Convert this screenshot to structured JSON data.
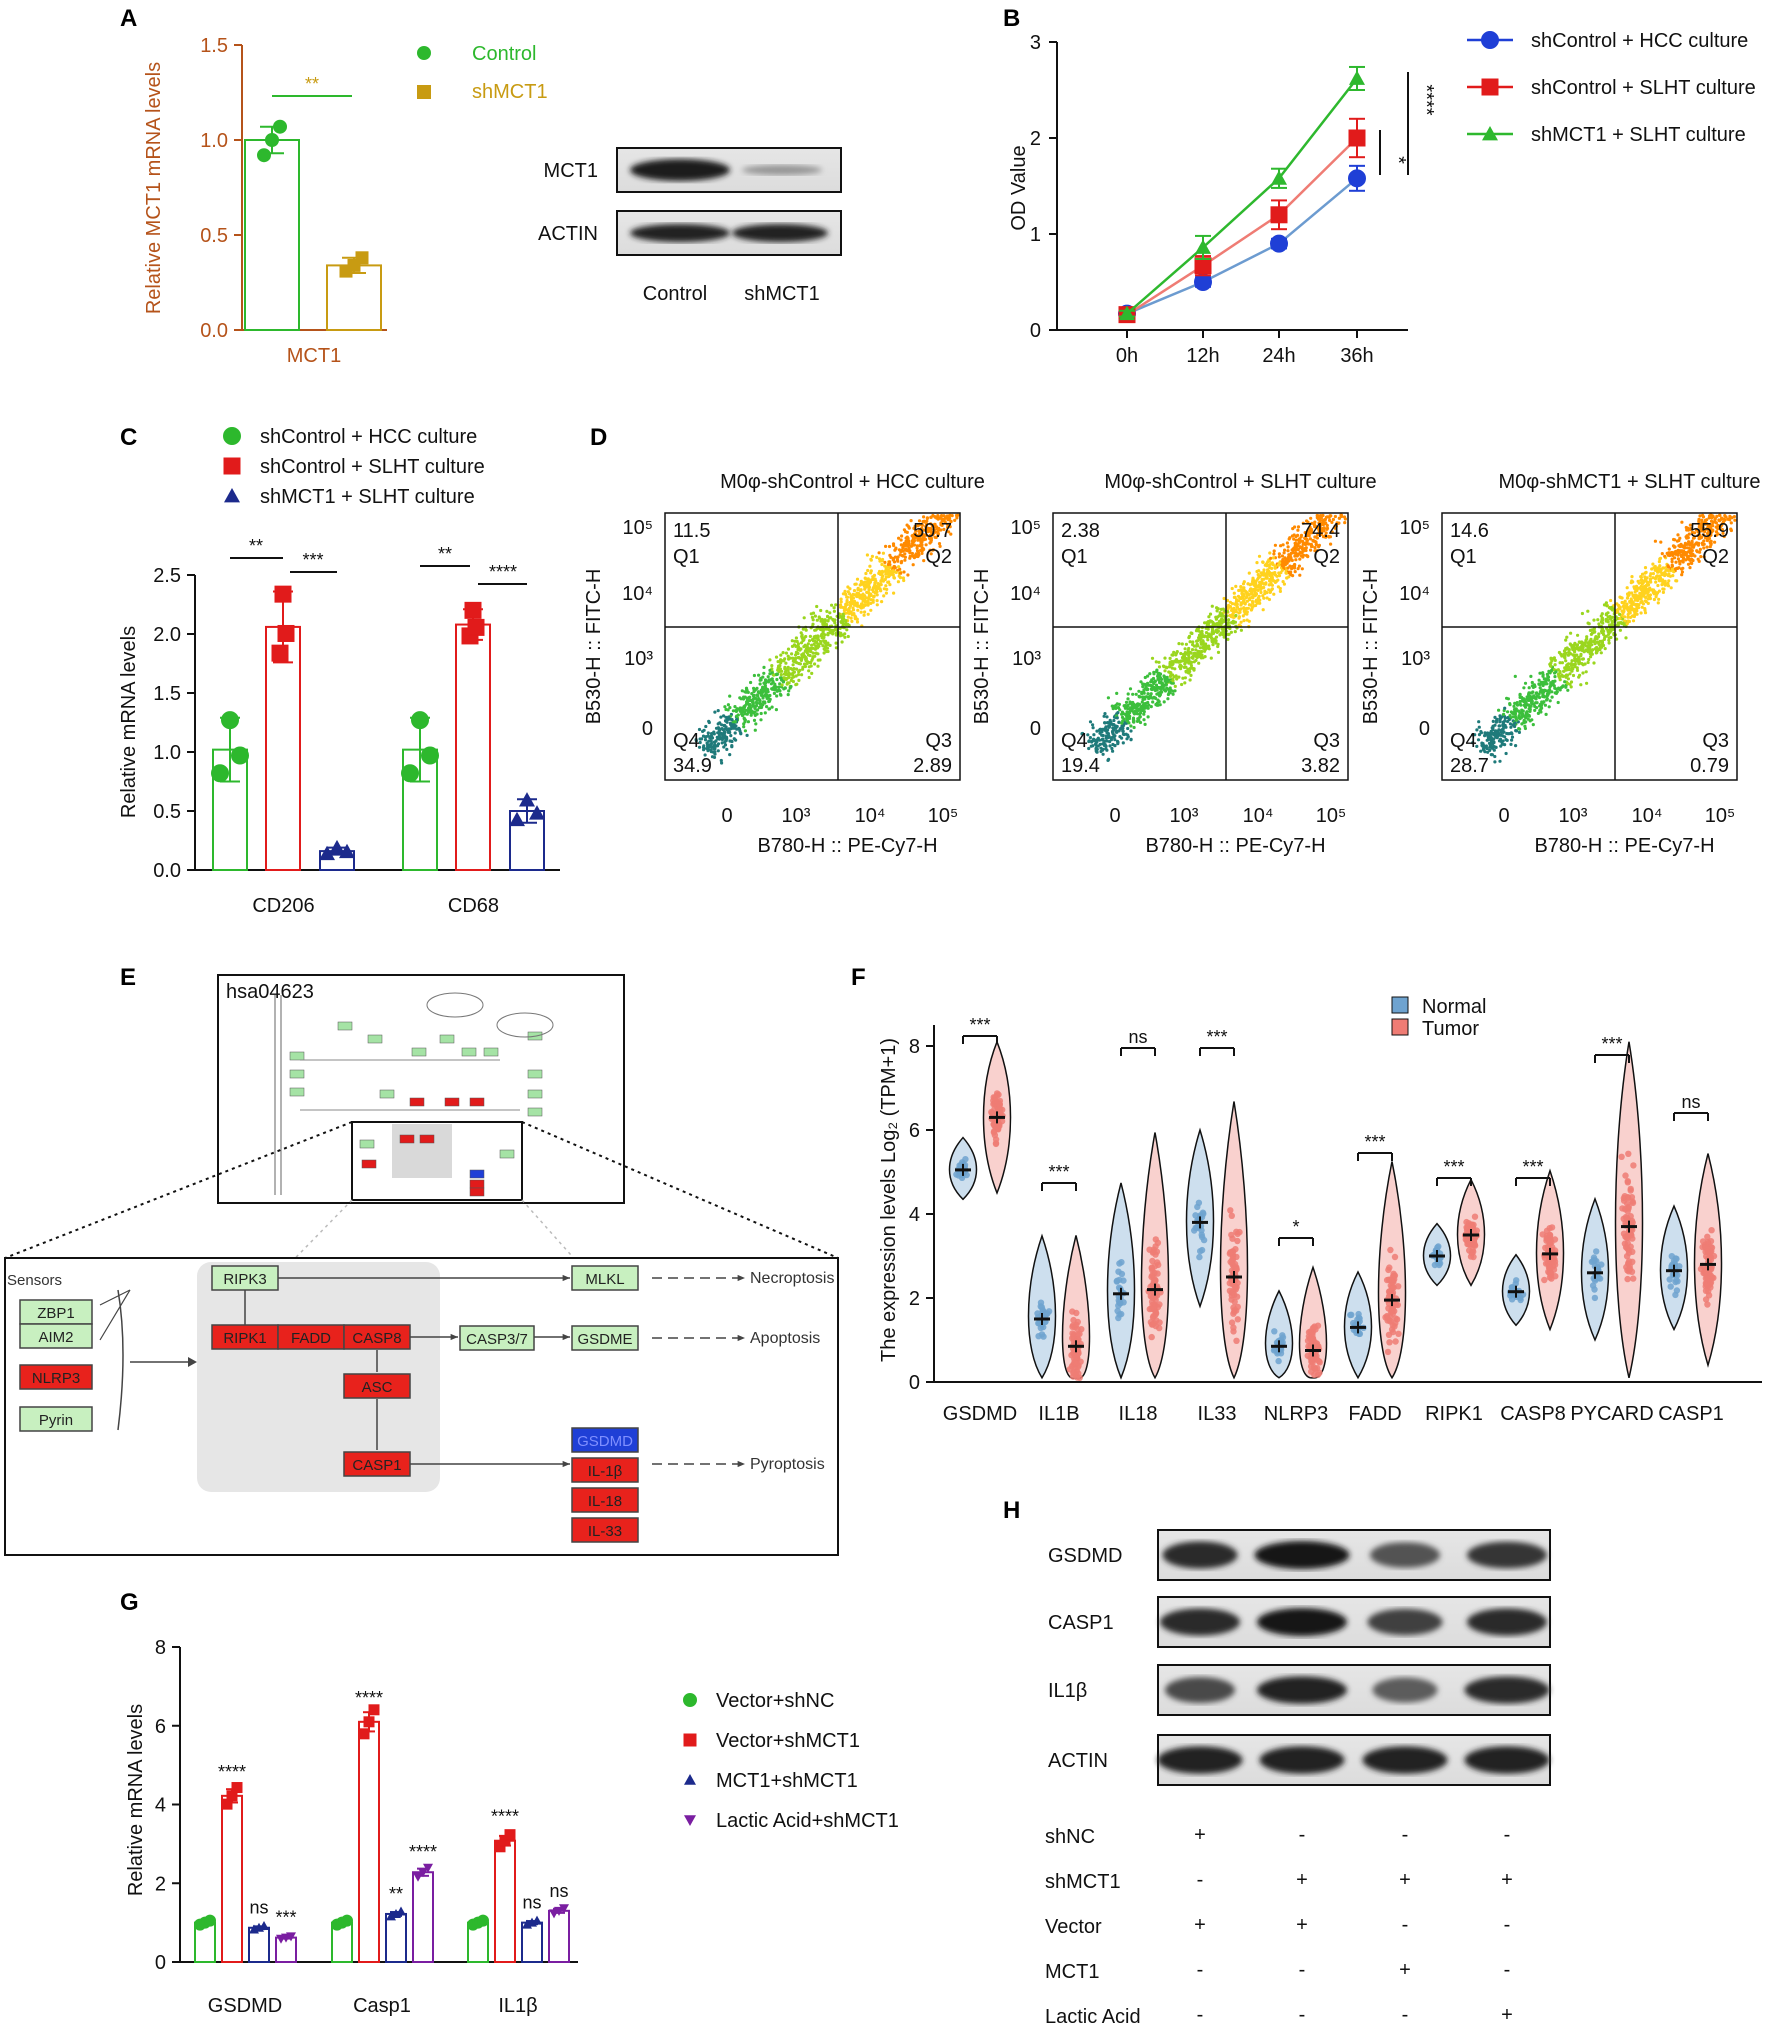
{
  "colors": {
    "green": "#2db82d",
    "gold": "#c89b12",
    "brown": "#b5531a",
    "blue": "#1f3fd6",
    "red": "#e11b1b",
    "lightgreen": "#2eb82e",
    "navy": "#1c2a8c",
    "purple": "#7a1ea1",
    "violin_blue": "#6fa3cf",
    "violin_red": "#ef7c74"
  },
  "panels": {
    "A": {
      "letter": "A",
      "chart_data": {
        "type": "bar",
        "categories": [
          "MCT1"
        ],
        "series": [
          {
            "name": "Control",
            "values": [
              1.0
            ],
            "error": [
              0.07
            ],
            "points": [
              [
                0.92,
                1.0,
                1.07
              ]
            ]
          },
          {
            "name": "shMCT1",
            "values": [
              0.34
            ],
            "error": [
              0.04
            ],
            "points": [
              [
                0.31,
                0.34,
                0.38
              ]
            ]
          }
        ],
        "title": "",
        "xlabel": "MCT1",
        "ylabel": "Relative MCT1 mRNA levels",
        "ylim": [
          0,
          1.5
        ],
        "yticks": [
          "0.0",
          "0.5",
          "1.0",
          "1.5"
        ],
        "significance": "**"
      },
      "blot": {
        "rows": [
          "MCT1",
          "ACTIN"
        ],
        "lanes": [
          "Control",
          "shMCT1"
        ]
      }
    },
    "B": {
      "letter": "B",
      "chart_data": {
        "type": "line",
        "x": [
          "0h",
          "12h",
          "24h",
          "36h"
        ],
        "series": [
          {
            "name": "shControl + HCC culture",
            "values": [
              0.17,
              0.5,
              0.9,
              1.58
            ],
            "error": [
              0.03,
              0.05,
              0.05,
              0.13
            ]
          },
          {
            "name": "shControl + SLHT culture",
            "values": [
              0.16,
              0.67,
              1.2,
              2.0
            ],
            "error": [
              0.03,
              0.1,
              0.15,
              0.2
            ]
          },
          {
            "name": "shMCT1 + SLHT culture",
            "values": [
              0.17,
              0.86,
              1.58,
              2.62
            ],
            "error": [
              0.03,
              0.12,
              0.1,
              0.12
            ]
          }
        ],
        "ylabel": "OD Value",
        "ylim": [
          0,
          3
        ],
        "yticks": [
          "0",
          "1",
          "2",
          "3"
        ],
        "significance": [
          "*",
          "****"
        ]
      }
    },
    "C": {
      "letter": "C",
      "chart_data": {
        "type": "bar",
        "categories": [
          "CD206",
          "CD68"
        ],
        "series": [
          {
            "name": "shControl + HCC culture",
            "values": [
              1.02,
              1.02
            ],
            "error": [
              0.27,
              0.27
            ]
          },
          {
            "name": "shControl + SLHT culture",
            "values": [
              2.06,
              2.08
            ],
            "error": [
              0.3,
              0.13
            ]
          },
          {
            "name": "shMCT1 + SLHT culture",
            "values": [
              0.16,
              0.5
            ],
            "error": [
              0.03,
              0.1
            ]
          }
        ],
        "ylabel": "Relative mRNA levels",
        "ylim": [
          0,
          2.5
        ],
        "yticks": [
          "0.0",
          "0.5",
          "1.0",
          "1.5",
          "2.0",
          "2.5"
        ],
        "significance": [
          "**",
          "***",
          "**",
          "****"
        ]
      }
    },
    "D": {
      "letter": "D",
      "chart_data": {
        "type": "scatter",
        "plots": [
          {
            "title": "M0φ-shControl + HCC culture",
            "Q1": "11.5",
            "Q2": "50.7",
            "Q3": "2.89",
            "Q4": "34.9"
          },
          {
            "title": "M0φ-shControl + SLHT culture",
            "Q1": "2.38",
            "Q2": "74.4",
            "Q3": "3.82",
            "Q4": "19.4"
          },
          {
            "title": "M0φ-shMCT1 + SLHT culture",
            "Q1": "14.6",
            "Q2": "55.9",
            "Q3": "0.79",
            "Q4": "28.7"
          }
        ],
        "xlabel": "B780-H :: PE-Cy7-H",
        "ylabel": "B530-H :: FITC-H",
        "quadrants": [
          "Q1",
          "Q2",
          "Q3",
          "Q4"
        ]
      }
    },
    "E": {
      "letter": "E",
      "pathway_id": "hsa04623",
      "sensors_label": "Sensors",
      "sensors": [
        "ZBP1",
        "AIM2",
        "NLRP3",
        "Pyrin"
      ],
      "nodes": {
        "ripk3": "RIPK3",
        "ripk1": "RIPK1",
        "fadd": "FADD",
        "casp8": "CASP8",
        "asc": "ASC",
        "casp1": "CASP1",
        "mlkl": "MLKL",
        "casp37": "CASP3/7",
        "gsdme": "GSDME",
        "gsdmd": "GSDMD",
        "il1b": "IL-1β",
        "il18": "IL-18",
        "il33": "IL-33"
      },
      "outcomes": [
        "Necroptosis",
        "Apoptosis",
        "Pyroptosis"
      ]
    },
    "F": {
      "letter": "F",
      "chart_data": {
        "type": "violin",
        "categories": [
          "GSDMD",
          "IL1B",
          "IL18",
          "IL33",
          "NLRP3",
          "FADD",
          "RIPK1",
          "CASP8",
          "PYCARD",
          "CASP1"
        ],
        "series": [
          {
            "name": "Normal",
            "medians": [
              5.05,
              1.5,
              2.1,
              3.8,
              0.85,
              1.3,
              3.0,
              2.15,
              2.6,
              2.65
            ]
          },
          {
            "name": "Tumor",
            "medians": [
              6.3,
              0.85,
              2.2,
              2.5,
              0.75,
              1.95,
              3.5,
              3.05,
              3.7,
              2.8
            ]
          }
        ],
        "significance": [
          "***",
          "***",
          "ns",
          "***",
          "*",
          "***",
          "***",
          "***",
          "***",
          "ns"
        ],
        "ylabel": "The expression levels Log₂ (TPM+1)",
        "ylim": [
          0,
          8
        ],
        "yticks": [
          "0",
          "2",
          "4",
          "6",
          "8"
        ]
      }
    },
    "G": {
      "letter": "G",
      "chart_data": {
        "type": "bar",
        "categories": [
          "GSDMD",
          "Casp1",
          "IL1β"
        ],
        "series": [
          {
            "name": "Vector+shNC",
            "values": [
              1.0,
              1.0,
              1.0
            ]
          },
          {
            "name": "Vector+shMCT1",
            "values": [
              4.22,
              6.1,
              3.08
            ]
          },
          {
            "name": "MCT1+shMCT1",
            "values": [
              0.87,
              1.22,
              1.0
            ]
          },
          {
            "name": "Lactic Acid+shMCT1",
            "values": [
              0.62,
              2.28,
              1.3
            ]
          }
        ],
        "significance": [
          [
            "****",
            "ns",
            "***"
          ],
          [
            "****",
            "**",
            "****"
          ],
          [
            "****",
            "ns",
            "ns"
          ]
        ],
        "ylabel": "Relative mRNA levels",
        "ylim": [
          0,
          8
        ],
        "yticks": [
          "0",
          "2",
          "4",
          "6",
          "8"
        ]
      }
    },
    "H": {
      "letter": "H",
      "blot_rows": [
        "GSDMD",
        "CASP1",
        "IL1β",
        "ACTIN"
      ],
      "conditions": [
        {
          "label": "shNC",
          "signs": [
            "+",
            "-",
            "-",
            "-"
          ]
        },
        {
          "label": "shMCT1",
          "signs": [
            "-",
            "+",
            "+",
            "+"
          ]
        },
        {
          "label": "Vector",
          "signs": [
            "+",
            "+",
            "-",
            "-"
          ]
        },
        {
          "label": "MCT1",
          "signs": [
            "-",
            "-",
            "+",
            "-"
          ]
        },
        {
          "label": "Lactic Acid",
          "signs": [
            "-",
            "-",
            "-",
            "+"
          ]
        }
      ]
    }
  }
}
